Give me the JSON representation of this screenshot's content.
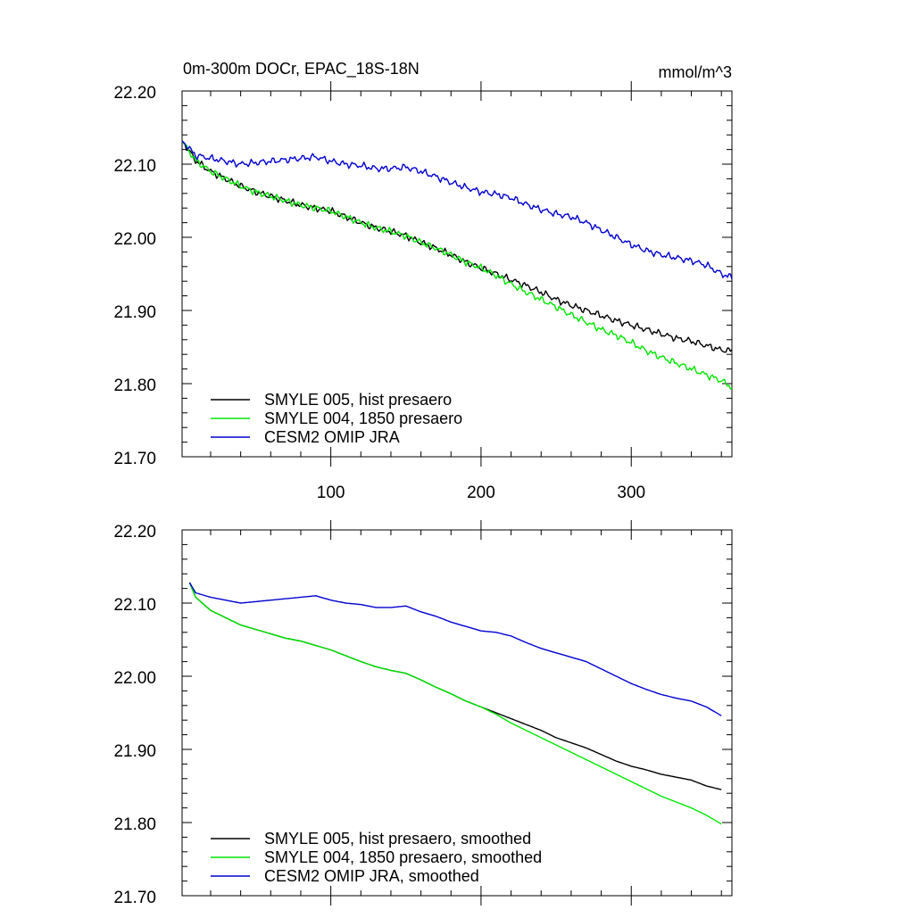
{
  "chart_data": [
    {
      "type": "line",
      "title": "0m-300m DOCr, EPAC_18S-18N",
      "units": "mmol/m^3",
      "ylim": [
        21.7,
        22.2
      ],
      "xlim": [
        1,
        367
      ],
      "yticks": [
        "22.20",
        "22.10",
        "22.00",
        "21.90",
        "21.80",
        "21.70"
      ],
      "xticks": [
        "100",
        "200",
        "300"
      ],
      "grid": false,
      "legend_position": "bottom-left",
      "series": [
        {
          "name": "SMYLE 005, hist presaero",
          "color": "#000000",
          "noise": true,
          "x": [
            1,
            10,
            20,
            30,
            40,
            50,
            60,
            70,
            80,
            90,
            100,
            110,
            120,
            130,
            140,
            150,
            160,
            170,
            180,
            190,
            200,
            210,
            220,
            230,
            240,
            250,
            260,
            270,
            280,
            290,
            300,
            310,
            320,
            330,
            340,
            350,
            360,
            367
          ],
          "values": [
            22.132,
            22.105,
            22.09,
            22.08,
            22.07,
            22.062,
            22.056,
            22.05,
            22.044,
            22.04,
            22.036,
            22.028,
            22.02,
            22.013,
            22.008,
            22.002,
            21.993,
            21.985,
            21.976,
            21.966,
            21.958,
            21.95,
            21.942,
            21.934,
            21.925,
            21.915,
            21.907,
            21.9,
            21.893,
            21.886,
            21.88,
            21.874,
            21.868,
            21.862,
            21.858,
            21.852,
            21.846,
            21.845
          ]
        },
        {
          "name": "SMYLE 004, 1850 presaero",
          "color": "#00e600",
          "noise": true,
          "x": [
            1,
            10,
            20,
            30,
            40,
            50,
            60,
            70,
            80,
            90,
            100,
            110,
            120,
            130,
            140,
            150,
            160,
            170,
            180,
            190,
            200,
            210,
            220,
            230,
            240,
            250,
            260,
            270,
            280,
            290,
            300,
            310,
            320,
            330,
            340,
            350,
            360,
            367
          ],
          "values": [
            22.132,
            22.105,
            22.09,
            22.08,
            22.07,
            22.062,
            22.056,
            22.05,
            22.044,
            22.04,
            22.036,
            22.028,
            22.02,
            22.013,
            22.008,
            22.002,
            21.993,
            21.985,
            21.976,
            21.966,
            21.958,
            21.948,
            21.936,
            21.925,
            21.915,
            21.905,
            21.894,
            21.884,
            21.874,
            21.866,
            21.856,
            21.845,
            21.836,
            21.828,
            21.82,
            21.812,
            21.804,
            21.795
          ]
        },
        {
          "name": "CESM2 OMIP JRA",
          "color": "#0000d0",
          "noise": true,
          "x": [
            1,
            10,
            20,
            30,
            40,
            50,
            60,
            70,
            80,
            90,
            100,
            110,
            120,
            130,
            140,
            150,
            160,
            170,
            180,
            190,
            200,
            210,
            220,
            230,
            240,
            250,
            260,
            270,
            280,
            290,
            300,
            310,
            320,
            330,
            340,
            350,
            360,
            367
          ],
          "values": [
            22.132,
            22.112,
            22.108,
            22.104,
            22.1,
            22.102,
            22.104,
            22.106,
            22.108,
            22.11,
            22.104,
            22.1,
            22.098,
            22.094,
            22.094,
            22.096,
            22.09,
            22.083,
            22.075,
            22.068,
            22.062,
            22.059,
            22.054,
            22.045,
            22.038,
            22.032,
            22.028,
            22.02,
            22.01,
            22.0,
            21.99,
            21.982,
            21.976,
            21.972,
            21.968,
            21.962,
            21.95,
            21.945
          ]
        }
      ]
    },
    {
      "type": "line",
      "ylim": [
        21.7,
        22.2
      ],
      "xlim": [
        1,
        367
      ],
      "yticks": [
        "22.20",
        "22.10",
        "22.00",
        "21.90",
        "21.80",
        "21.70"
      ],
      "grid": false,
      "legend_position": "bottom-left",
      "series": [
        {
          "name": "SMYLE 005, hist presaero, smoothed",
          "color": "#000000",
          "noise": false,
          "x": [
            6,
            10,
            20,
            30,
            40,
            50,
            60,
            70,
            80,
            90,
            100,
            110,
            120,
            130,
            140,
            150,
            160,
            170,
            180,
            190,
            200,
            210,
            220,
            230,
            240,
            250,
            260,
            270,
            280,
            290,
            300,
            310,
            320,
            330,
            340,
            350,
            360
          ],
          "values": [
            22.128,
            22.108,
            22.09,
            22.08,
            22.07,
            22.064,
            22.058,
            22.052,
            22.048,
            22.042,
            22.036,
            22.028,
            22.02,
            22.013,
            22.008,
            22.004,
            21.995,
            21.985,
            21.976,
            21.966,
            21.958,
            21.95,
            21.942,
            21.934,
            21.926,
            21.916,
            21.909,
            21.902,
            21.893,
            21.884,
            21.877,
            21.872,
            21.866,
            21.862,
            21.858,
            21.85,
            21.845
          ]
        },
        {
          "name": "SMYLE 004, 1850 presaero, smoothed",
          "color": "#00e600",
          "noise": false,
          "x": [
            6,
            10,
            20,
            30,
            40,
            50,
            60,
            70,
            80,
            90,
            100,
            110,
            120,
            130,
            140,
            150,
            160,
            170,
            180,
            190,
            200,
            210,
            220,
            230,
            240,
            250,
            260,
            270,
            280,
            290,
            300,
            310,
            320,
            330,
            340,
            350,
            360
          ],
          "values": [
            22.128,
            22.108,
            22.09,
            22.08,
            22.07,
            22.064,
            22.058,
            22.052,
            22.048,
            22.042,
            22.036,
            22.028,
            22.02,
            22.013,
            22.008,
            22.004,
            21.995,
            21.985,
            21.976,
            21.966,
            21.958,
            21.948,
            21.936,
            21.926,
            21.916,
            21.906,
            21.896,
            21.886,
            21.876,
            21.866,
            21.856,
            21.846,
            21.836,
            21.828,
            21.82,
            21.81,
            21.798
          ]
        },
        {
          "name": "CESM2 OMIP JRA, smoothed",
          "color": "#0000d0",
          "noise": false,
          "x": [
            6,
            10,
            20,
            30,
            40,
            50,
            60,
            70,
            80,
            90,
            100,
            110,
            120,
            130,
            140,
            150,
            160,
            170,
            180,
            190,
            200,
            210,
            220,
            230,
            240,
            250,
            260,
            270,
            280,
            290,
            300,
            310,
            320,
            330,
            340,
            350,
            360
          ],
          "values": [
            22.128,
            22.114,
            22.108,
            22.104,
            22.1,
            22.102,
            22.104,
            22.106,
            22.108,
            22.11,
            22.104,
            22.1,
            22.098,
            22.094,
            22.094,
            22.096,
            22.088,
            22.082,
            22.074,
            22.068,
            22.062,
            22.06,
            22.055,
            22.046,
            22.038,
            22.032,
            22.026,
            22.02,
            22.01,
            22.0,
            21.99,
            21.982,
            21.975,
            21.97,
            21.966,
            21.958,
            21.946
          ]
        }
      ]
    }
  ]
}
